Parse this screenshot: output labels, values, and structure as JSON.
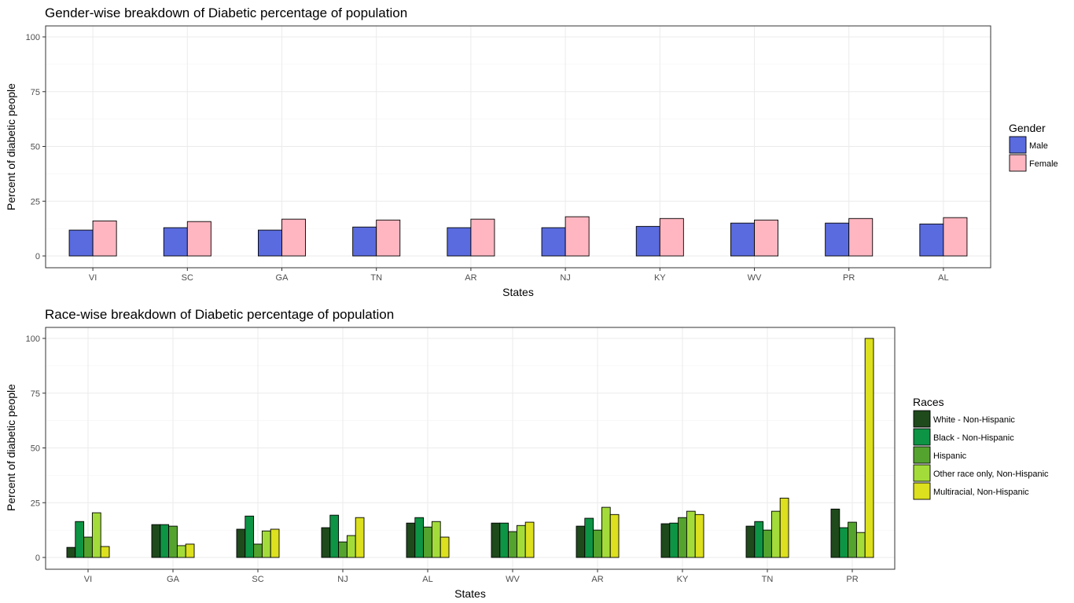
{
  "chart_data": [
    {
      "type": "bar",
      "title": "Gender-wise breakdown of Diabetic percentage of population",
      "xlabel": "States",
      "ylabel": "Percent of diabetic people",
      "ylim": [
        0,
        100
      ],
      "yticks": [
        0,
        25,
        50,
        75,
        100
      ],
      "grid": true,
      "legend_title": "Gender",
      "legend_position": "right",
      "categories": [
        "VI",
        "SC",
        "GA",
        "TN",
        "AR",
        "NJ",
        "KY",
        "WV",
        "PR",
        "AL"
      ],
      "series": [
        {
          "name": "Male",
          "color": "#5a6bdf",
          "values": [
            11.8,
            12.9,
            11.8,
            13.2,
            12.9,
            12.9,
            13.5,
            15.0,
            15.0,
            14.6
          ]
        },
        {
          "name": "Female",
          "color": "#ffb6c1",
          "values": [
            16.0,
            15.7,
            16.8,
            16.4,
            16.8,
            17.9,
            17.1,
            16.4,
            17.1,
            17.5
          ]
        }
      ]
    },
    {
      "type": "bar",
      "title": "Race-wise breakdown of Diabetic percentage of population",
      "xlabel": "States",
      "ylabel": "Percent of diabetic people",
      "ylim": [
        0,
        100
      ],
      "yticks": [
        0,
        25,
        50,
        75,
        100
      ],
      "grid": true,
      "legend_title": "Races",
      "legend_position": "right",
      "categories": [
        "VI",
        "GA",
        "SC",
        "NJ",
        "AL",
        "WV",
        "AR",
        "KY",
        "TN",
        "PR"
      ],
      "series": [
        {
          "name": "White - Non-Hispanic",
          "color": "#1f4a1c",
          "values": [
            4.6,
            15.0,
            12.9,
            13.6,
            15.7,
            15.7,
            14.3,
            15.4,
            14.3,
            22.1
          ]
        },
        {
          "name": "Black - Non-Hispanic",
          "color": "#0d9444",
          "values": [
            16.4,
            15.0,
            18.9,
            19.3,
            18.2,
            15.7,
            17.9,
            15.7,
            16.4,
            13.6
          ]
        },
        {
          "name": "Hispanic",
          "color": "#55a32f",
          "values": [
            9.3,
            14.3,
            6.1,
            7.1,
            13.9,
            11.8,
            12.5,
            18.2,
            12.5,
            16.1
          ]
        },
        {
          "name": "Other race only, Non-Hispanic",
          "color": "#a3dc3a",
          "values": [
            20.4,
            5.4,
            12.1,
            10.0,
            16.4,
            14.6,
            22.9,
            21.1,
            21.1,
            11.4
          ]
        },
        {
          "name": "Multiracial, Non-Hispanic",
          "color": "#dce01e",
          "values": [
            5.0,
            6.1,
            12.9,
            18.2,
            9.3,
            16.1,
            19.6,
            19.6,
            27.1,
            100.0
          ]
        }
      ]
    }
  ]
}
